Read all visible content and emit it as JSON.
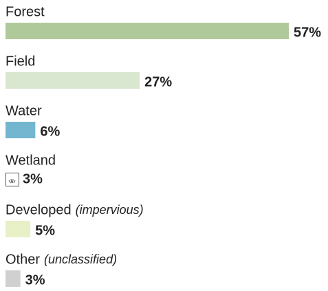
{
  "chart_data": {
    "type": "bar",
    "orientation": "horizontal",
    "categories": [
      "Forest",
      "Field",
      "Water",
      "Wetland",
      "Developed",
      "Other"
    ],
    "category_notes": [
      null,
      null,
      null,
      null,
      "(impervious)",
      "(unclassified)"
    ],
    "values": [
      57,
      27,
      6,
      3,
      5,
      3
    ],
    "value_labels": [
      "57%",
      "27%",
      "6%",
      "3%",
      "5%",
      "3%"
    ],
    "colors": [
      "#b0c99a",
      "#d9e6d0",
      "#74b6cf",
      "#ffffff",
      "#e8f0c8",
      "#d0d0d0"
    ],
    "icon_categories": [
      "Wetland"
    ]
  }
}
